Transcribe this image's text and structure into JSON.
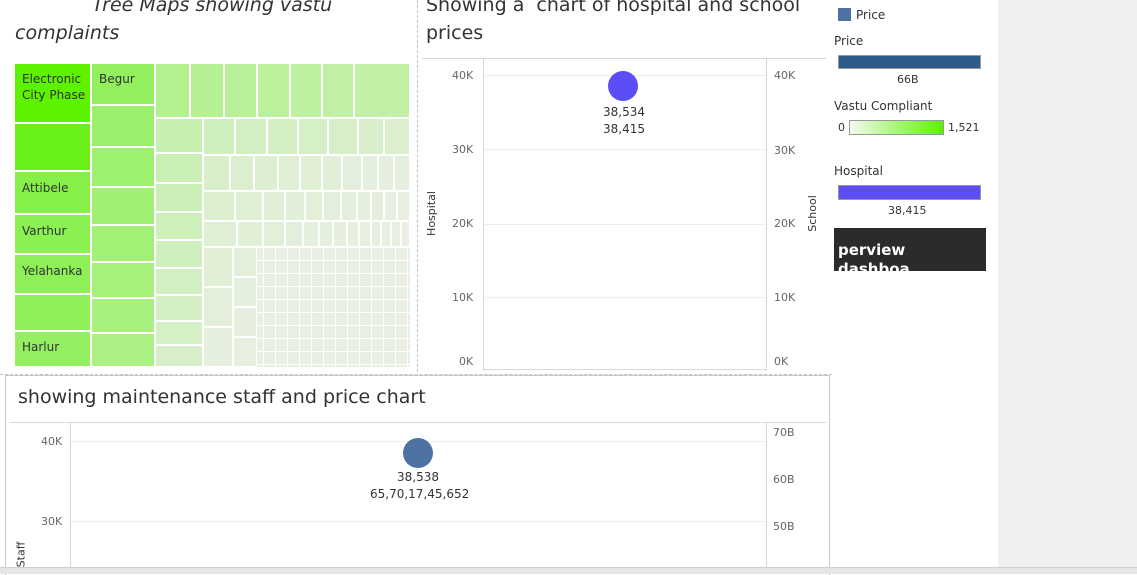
{
  "treemap": {
    "title_line1": "Tree Maps showing vastu",
    "title_line2": "complaints",
    "labels": [
      "Electronic City Phase",
      "Begur",
      "Attibele",
      "Varthur",
      "Yelahanka",
      "Harlur"
    ]
  },
  "hospital_chart": {
    "title_line1": "Showing a  chart of hospital and school",
    "title_line2": "prices",
    "left_ticks": [
      "40K",
      "30K",
      "20K",
      "10K",
      "0K"
    ],
    "right_ticks": [
      "40K",
      "30K",
      "20K",
      "10K",
      "0K"
    ],
    "left_axis_label": "Hospital",
    "right_axis_label": "School",
    "point_label_1": "38,534",
    "point_label_2": "38,415",
    "point_color": "#5b4ef7"
  },
  "staff_chart": {
    "title": "showing maintenance staff and price chart",
    "left_ticks": [
      "40K",
      "30K"
    ],
    "right_ticks": [
      "70B",
      "60B",
      "50B"
    ],
    "left_axis_label": "Staff",
    "point_label_1": "38,538",
    "point_label_2": "65,70,17,45,652",
    "point_color": "#4e73a3"
  },
  "legend": {
    "price_item": "Price",
    "price_header": "Price",
    "price_value": "66B",
    "price_color": "#2d5b8a",
    "vastu_header": "Vastu Compliant",
    "vastu_min": "0",
    "vastu_max": "1,521",
    "hospital_header": "Hospital",
    "hospital_value": "38,415",
    "hospital_color": "#5b4ef7",
    "dashboard_button": "perview dashboa..."
  }
}
